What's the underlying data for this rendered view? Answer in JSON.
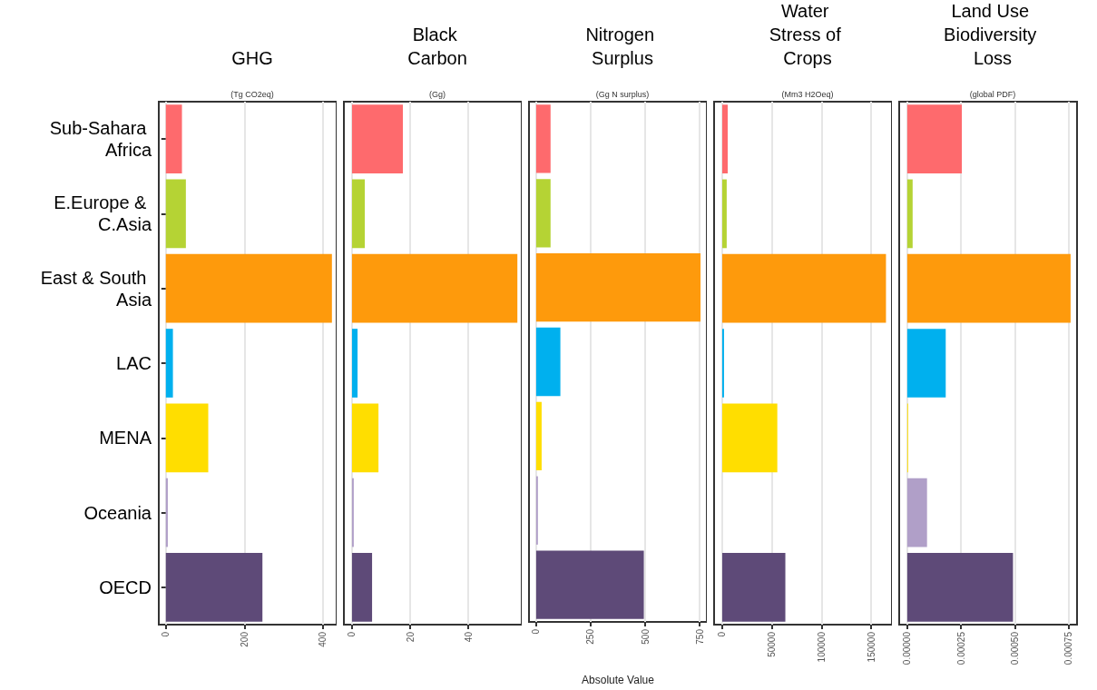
{
  "chart_data": [
    {
      "type": "bar",
      "orientation": "horizontal",
      "title": "GHG",
      "subtitle": "(Tg CO2eq)",
      "categories": [
        "Sub-Sahara Africa",
        "E.Europe & C.Asia",
        "East & South Asia",
        "LAC",
        "MENA",
        "Oceania",
        "OECD"
      ],
      "values": [
        41,
        51,
        423,
        18,
        108,
        5,
        246
      ],
      "colors": [
        "#fe6a6d",
        "#b5d334",
        "#fe9a0c",
        "#00b0ee",
        "#ffde00",
        "#b09fc8",
        "#5e4a78"
      ],
      "xlim": [
        -18,
        435
      ],
      "xticks": [
        0,
        200,
        400
      ],
      "grid": "x"
    },
    {
      "type": "bar",
      "orientation": "horizontal",
      "title": "Black Carbon",
      "subtitle": "(Gg)",
      "categories": [
        "Sub-Sahara Africa",
        "E.Europe & C.Asia",
        "East & South Asia",
        "LAC",
        "MENA",
        "Oceania",
        "OECD"
      ],
      "values": [
        17.5,
        4.4,
        56.9,
        1.9,
        9.1,
        0.6,
        6.9
      ],
      "colors": [
        "#fe6a6d",
        "#b5d334",
        "#fe9a0c",
        "#00b0ee",
        "#ffde00",
        "#b09fc8",
        "#5e4a78"
      ],
      "xlim": [
        -2.8,
        58.4
      ],
      "xticks": [
        0,
        20,
        40
      ],
      "grid": "x",
      "tick_labels": "x"
    },
    {
      "type": "bar",
      "orientation": "horizontal",
      "title": "Nitrogen Surplus",
      "subtitle": "(Gg N surplus)",
      "xlabel": "Absolute Value",
      "categories": [
        "Sub-Sahara Africa",
        "E.Europe & C.Asia",
        "East & South Asia",
        "LAC",
        "MENA",
        "Oceania",
        "OECD"
      ],
      "values": [
        66,
        66,
        754,
        111,
        25,
        8,
        494
      ],
      "colors": [
        "#fe6a6d",
        "#b5d334",
        "#fe9a0c",
        "#00b0ee",
        "#ffde00",
        "#b09fc8",
        "#5e4a78"
      ],
      "xlim": [
        -33,
        783
      ],
      "xticks": [
        0,
        250,
        500,
        750
      ],
      "grid": "x",
      "tick_labels": "x"
    },
    {
      "type": "bar",
      "orientation": "horizontal",
      "title": "Water Stress of Crops",
      "subtitle": "(Mm3 H2Oeq)",
      "categories": [
        "Sub-Sahara Africa",
        "E.Europe & C.Asia",
        "East & South Asia",
        "LAC",
        "MENA",
        "Oceania",
        "OECD"
      ],
      "values": [
        5500,
        4500,
        165000,
        1800,
        55500,
        0,
        63600
      ],
      "colors": [
        "#fe6a6d",
        "#b5d334",
        "#fe9a0c",
        "#00b0ee",
        "#ffde00",
        "#b09fc8",
        "#5e4a78"
      ],
      "xlim": [
        -8200,
        171000
      ],
      "xticks": [
        0,
        50000,
        100000,
        150000
      ],
      "grid": "x",
      "tick_labels": "x"
    },
    {
      "type": "bar",
      "orientation": "horizontal",
      "title": "Land Use Biodiversity Loss",
      "subtitle": "(global PDF)",
      "categories": [
        "Sub-Sahara Africa",
        "E.Europe & C.Asia",
        "East & South Asia",
        "LAC",
        "MENA",
        "Oceania",
        "OECD"
      ],
      "values": [
        0.000254,
        2.5e-05,
        0.00076,
        0.000179,
        4e-06,
        9.2e-05,
        0.000492
      ],
      "colors": [
        "#fe6a6d",
        "#b5d334",
        "#fe9a0c",
        "#00b0ee",
        "#ffde00",
        "#b09fc8",
        "#5e4a78"
      ],
      "xlim": [
        -3.75e-05,
        0.00079
      ],
      "xticks": [
        {
          "value": 0,
          "label": "0.00000"
        },
        {
          "value": 0.00025,
          "label": "0.00025"
        },
        {
          "value": 0.0005,
          "label": "0.00050"
        },
        {
          "value": 0.00075,
          "label": "0.00075"
        }
      ],
      "grid": "x",
      "tick_labels": "x"
    }
  ]
}
